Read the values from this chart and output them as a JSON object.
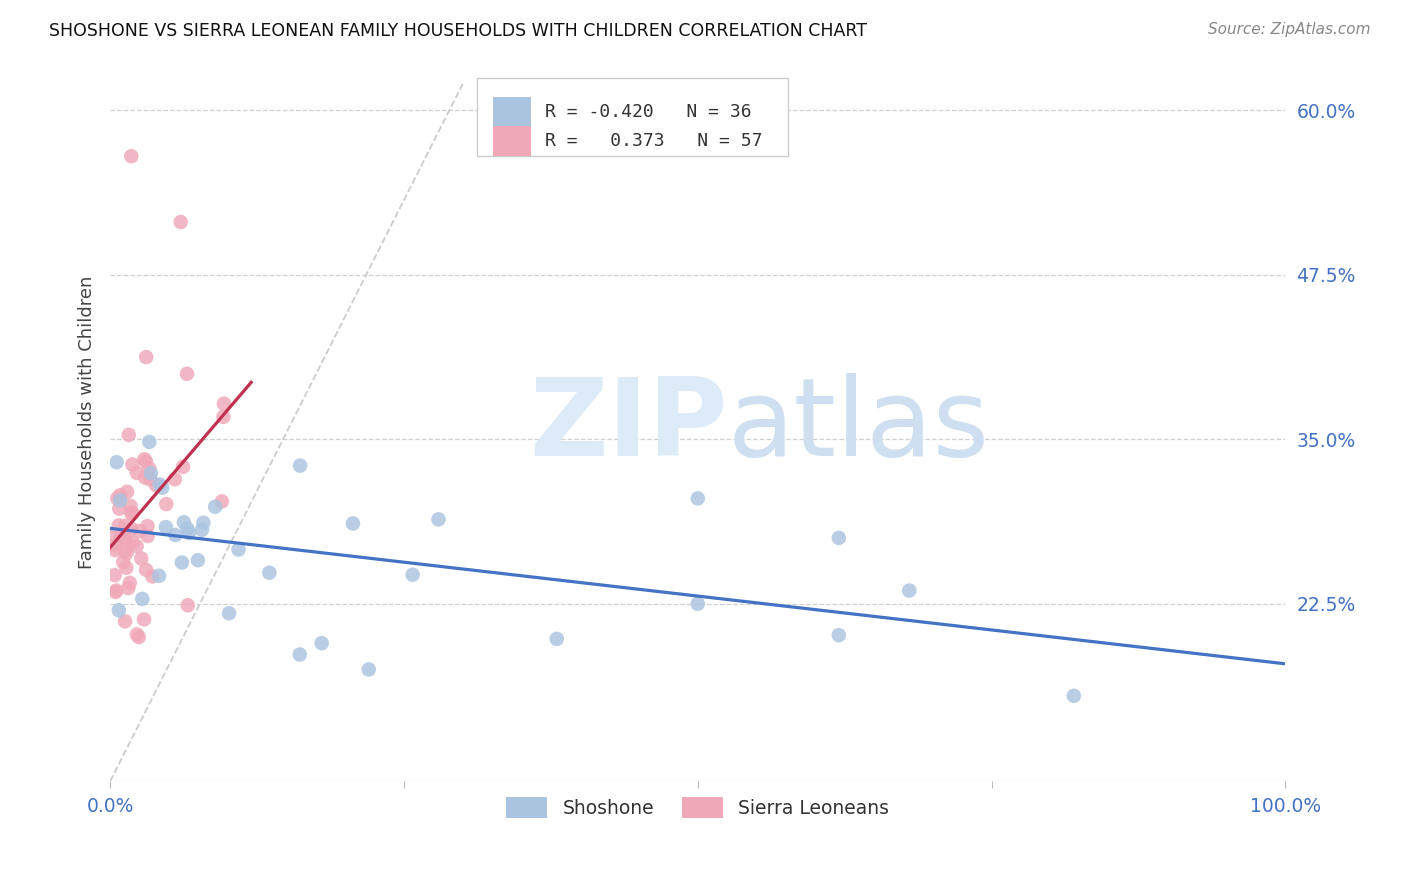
{
  "title": "SHOSHONE VS SIERRA LEONEAN FAMILY HOUSEHOLDS WITH CHILDREN CORRELATION CHART",
  "source": "Source: ZipAtlas.com",
  "ylabel": "Family Households with Children",
  "xlim": [
    0.0,
    1.0
  ],
  "ylim": [
    0.09,
    0.635
  ],
  "yticks": [
    0.225,
    0.35,
    0.475,
    0.6
  ],
  "ytick_labels": [
    "22.5%",
    "35.0%",
    "47.5%",
    "60.0%"
  ],
  "xtick_vals": [
    0.0,
    0.25,
    0.5,
    0.75,
    1.0
  ],
  "xtick_labels": [
    "0.0%",
    "",
    "",
    "",
    "100.0%"
  ],
  "background_color": "#ffffff",
  "grid_color": "#d0d0d0",
  "axis_color": "#4472c4",
  "shoshone_color": "#aac4e0",
  "sierra_color": "#f0a8b8",
  "shoshone_line_color": "#4472c4",
  "sierra_line_color": "#c03050",
  "diagonal_color": "#cccccc",
  "legend_R_shoshone": "-0.420",
  "legend_N_shoshone": "36",
  "legend_R_sierra": "0.373",
  "legend_N_sierra": "57"
}
